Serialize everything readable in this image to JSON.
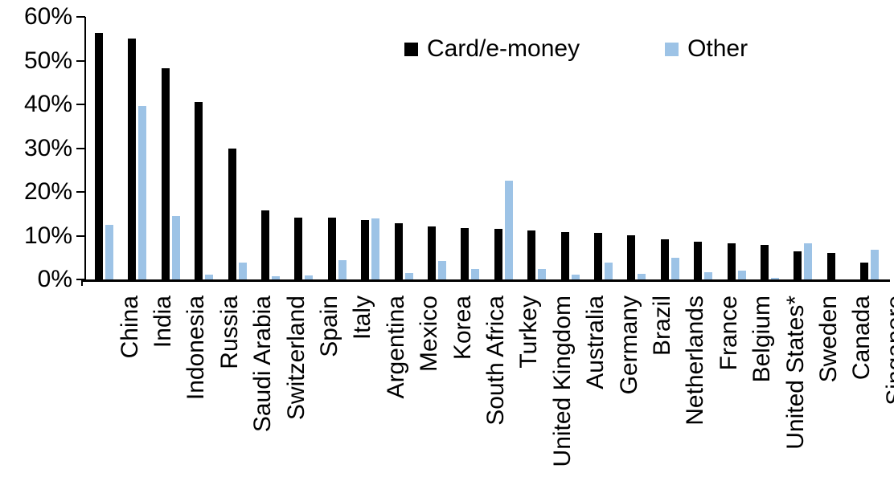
{
  "chart_data": {
    "type": "bar",
    "title": "",
    "xlabel": "",
    "ylabel": "",
    "ylim": [
      0,
      60
    ],
    "ytick_labels": [
      "0%",
      "10%",
      "20%",
      "30%",
      "40%",
      "50%",
      "60%"
    ],
    "grid": false,
    "legend_position": "top-center",
    "categories": [
      "China",
      "India",
      "Indonesia",
      "Russia",
      "Saudi Arabia",
      "Switzerland",
      "Spain",
      "Italy",
      "Argentina",
      "Mexico",
      "Korea",
      "South Africa",
      "Turkey",
      "United Kingdom",
      "Australia",
      "Germany",
      "Brazil",
      "Netherlands",
      "France",
      "Belgium",
      "United States*",
      "Sweden",
      "Canada",
      "Singapore"
    ],
    "series": [
      {
        "name": "Card/e-money",
        "color": "#000000",
        "values": [
          56.4,
          55.0,
          48.3,
          40.5,
          29.9,
          15.7,
          14.2,
          14.1,
          13.6,
          12.9,
          12.2,
          11.8,
          11.6,
          11.2,
          10.9,
          10.7,
          10.0,
          9.2,
          8.7,
          8.2,
          7.9,
          6.5,
          6.0,
          3.9
        ]
      },
      {
        "name": "Other",
        "color": "#9DC3E6",
        "values": [
          12.4,
          39.7,
          14.5,
          1.1,
          3.8,
          0.8,
          1.0,
          4.4,
          14.0,
          1.4,
          4.3,
          2.4,
          22.5,
          2.3,
          1.1,
          3.9,
          1.2,
          4.9,
          1.7,
          2.1,
          0.4,
          8.2,
          0.0,
          6.7
        ]
      }
    ]
  }
}
